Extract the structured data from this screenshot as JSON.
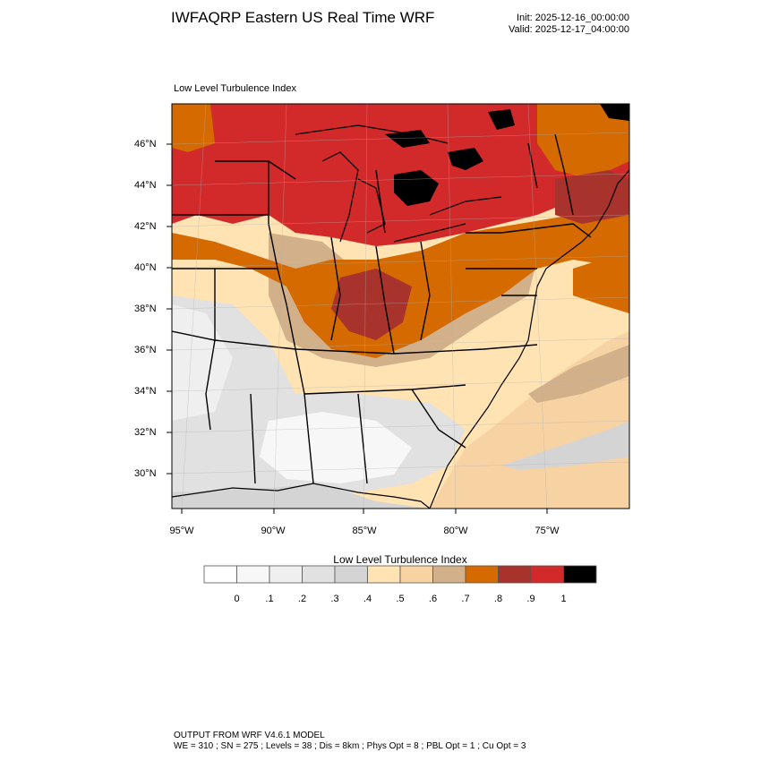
{
  "header": {
    "title": "IWFAQRP Eastern US Real Time WRF",
    "init": "Init: 2025-12-16_00:00:00",
    "valid": "Valid: 2025-12-17_04:00:00"
  },
  "map": {
    "field_label": "Low Level Turbulence Index",
    "lat_labels": [
      {
        "text": "46°N",
        "deg": 46
      },
      {
        "text": "44°N",
        "deg": 44
      },
      {
        "text": "42°N",
        "deg": 42
      },
      {
        "text": "40°N",
        "deg": 40
      },
      {
        "text": "38°N",
        "deg": 38
      },
      {
        "text": "36°N",
        "deg": 36
      },
      {
        "text": "34°N",
        "deg": 34
      },
      {
        "text": "32°N",
        "deg": 32
      },
      {
        "text": "30°N",
        "deg": 30
      }
    ],
    "lon_labels": [
      {
        "text": "95°W",
        "deg": -95
      },
      {
        "text": "90°W",
        "deg": -90
      },
      {
        "text": "85°W",
        "deg": -85
      },
      {
        "text": "80°W",
        "deg": -80
      },
      {
        "text": "75°W",
        "deg": -75
      }
    ]
  },
  "colorbar": {
    "title": "Low Level Turbulence Index",
    "colors": [
      "#ffffff",
      "#f7f7f7",
      "#efefef",
      "#e1e1e1",
      "#d4d4d4",
      "#ffe3b3",
      "#f7d3a3",
      "#d2b08a",
      "#d46a00",
      "#a8322c",
      "#d22a2a",
      "#000000"
    ],
    "ticks": [
      "0",
      ".1",
      ".2",
      ".3",
      ".4",
      ".5",
      ".6",
      ".7",
      ".8",
      ".9",
      "1"
    ]
  },
  "footer": {
    "line1": "OUTPUT FROM WRF V4.6.1 MODEL",
    "line2": "WE = 310 ; SN = 275 ; Levels = 38 ; Dis = 8km ; Phys Opt = 8 ; PBL Opt = 1 ; Cu Opt = 3"
  }
}
